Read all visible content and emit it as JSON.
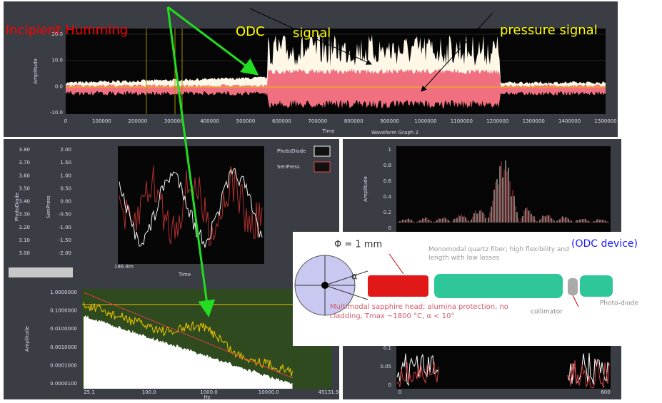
{
  "annotations": {
    "incipient_humming": "Incipient Humming",
    "odc": "ODC",
    "signal": "signal",
    "pressure_signal": "pressure signal",
    "odc_device": "(ODC   device)"
  },
  "top_graph": {
    "y_label": "Amplitude",
    "y_ticks": [
      "20.0",
      "10.0",
      "0.0",
      "-10.0"
    ],
    "x_ticks": [
      "0",
      "100000",
      "200000",
      "300000",
      "400000",
      "500000",
      "600000",
      "700000",
      "800000",
      "900000",
      "1000000",
      "1100000",
      "1200000",
      "1300000",
      "1400000",
      "1500000"
    ],
    "x_label": "Time",
    "caption": "Waveform Graph 2"
  },
  "mid_left": {
    "y_label": "PhotoDiode",
    "y2_label": "SenPress",
    "y_ticks": [
      "3.80",
      "3.70",
      "3.60",
      "3.50",
      "3.40",
      "3.30",
      "3.20",
      "3.10",
      "3.00"
    ],
    "y2_ticks": [
      "2.00",
      "1.50",
      "1.00",
      "0.50",
      "0.00",
      "-0.50",
      "-1.00",
      "-1.50",
      "-2.00"
    ],
    "legend": [
      "PhotoDiode",
      "SenPress"
    ],
    "x_tick": "186.8m",
    "x_label": "Time"
  },
  "mid_right": {
    "y_label": "Amplitude",
    "y_ticks": [
      "1",
      "0.8",
      "0.6",
      "0.4",
      "0.2",
      "0"
    ]
  },
  "bottom_left": {
    "y_label": "Amplitude",
    "y_ticks": [
      "1.0000000",
      "0.1000000",
      "0.0100000",
      "0.0010000",
      "0.0001000",
      "0.0000100"
    ],
    "x_ticks": [
      "25.1",
      "100.0",
      "1000.0",
      "10000.0",
      "45131.9"
    ],
    "x_label": "Hz"
  },
  "bottom_right": {
    "y_ticks": [
      "0.1",
      "0.05",
      "0"
    ],
    "x_ticks": [
      "0",
      "600"
    ]
  },
  "device": {
    "diameter": "Φ = 1 mm",
    "alpha": "α",
    "fiber": "Monomodal quartz fiber; high flexibility and length with low losses",
    "head": "Multimodal sapphire head; alumina protection, no cladding, Tmax ~1800 °C, α < 10°",
    "collimator": "collimator",
    "photodiode": "Photo-diode"
  }
}
